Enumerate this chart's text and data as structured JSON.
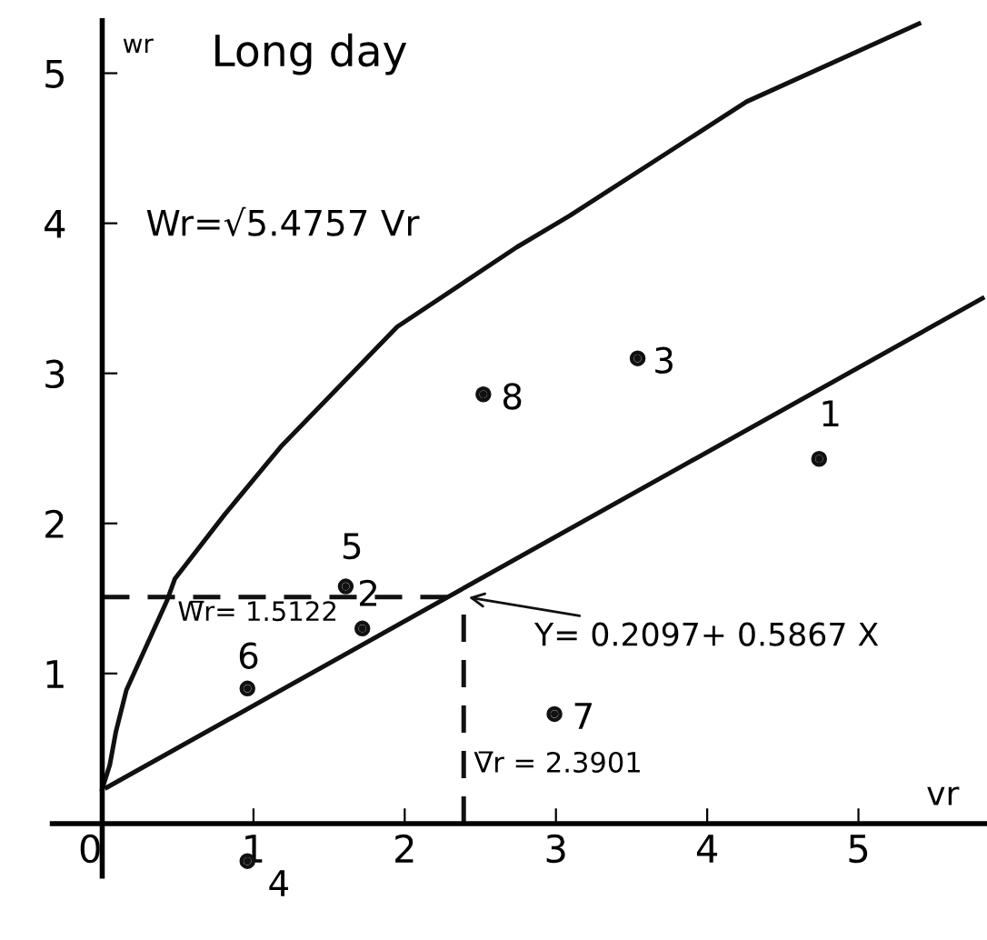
{
  "chart_data": {
    "type": "scatter",
    "title": "Long day",
    "xlabel": "vr",
    "ylabel": "wr",
    "xlim": [
      -0.33,
      5.85
    ],
    "ylim": [
      -0.35,
      5.35
    ],
    "xticks": [
      0,
      1,
      2,
      3,
      4,
      5
    ],
    "yticks": [
      1,
      2,
      3,
      4,
      5
    ],
    "grid": false,
    "legend": false,
    "series": [
      {
        "marker": "circle",
        "color": "#111111",
        "x": [
          4.74,
          1.72,
          3.54,
          0.96,
          1.61,
          0.96,
          2.99,
          2.52
        ],
        "values": [
          2.43,
          1.3,
          3.1,
          -0.25,
          1.58,
          0.9,
          0.73,
          2.86
        ]
      },
      {
        "type": "line",
        "color": "#111111",
        "line_style": "solid",
        "x": [
          0.0,
          0.05,
          0.09,
          0.16,
          0.43,
          0.48,
          0.81,
          1.18,
          1.95,
          2.74,
          3.09,
          4.26,
          5.4
        ],
        "values": [
          0.23,
          0.39,
          0.61,
          0.89,
          1.49,
          1.63,
          2.06,
          2.51,
          3.31,
          3.84,
          4.05,
          4.81,
          5.33
        ]
      },
      {
        "type": "line",
        "color": "#111111",
        "line_style": "solid",
        "x": [
          0.03,
          5.82
        ],
        "values": [
          0.24,
          3.5
        ]
      },
      {
        "type": "line",
        "color": "#111111",
        "line_style": "dashed",
        "x": [
          0,
          2.39
        ],
        "values": [
          1.51,
          1.51
        ]
      },
      {
        "type": "line",
        "color": "#111111",
        "line_style": "dashed",
        "x": [
          2.39,
          2.39
        ],
        "values": [
          0,
          1.51
        ]
      }
    ],
    "annotations": [
      {
        "text": "1",
        "x": 4.74,
        "y": 2.43
      },
      {
        "text": "2",
        "x": 1.72,
        "y": 1.3
      },
      {
        "text": "3",
        "x": 3.54,
        "y": 3.1
      },
      {
        "text": "4",
        "x": 0.96,
        "y": -0.25
      },
      {
        "text": "5",
        "x": 1.61,
        "y": 1.58
      },
      {
        "text": "6",
        "x": 0.96,
        "y": 0.9
      },
      {
        "text": "7",
        "x": 2.99,
        "y": 0.73
      },
      {
        "text": "8",
        "x": 2.52,
        "y": 2.86
      },
      "Wr=√5.4757 Vr",
      "W̅r= 1.5122",
      {
        "text": "Y= 0.2097+ 0.5867 X",
        "x": 2.3901,
        "y": 1.5122
      },
      {
        "text": "V̅r = 2.3901",
        "x": 2.3901,
        "y": 0
      }
    ]
  }
}
